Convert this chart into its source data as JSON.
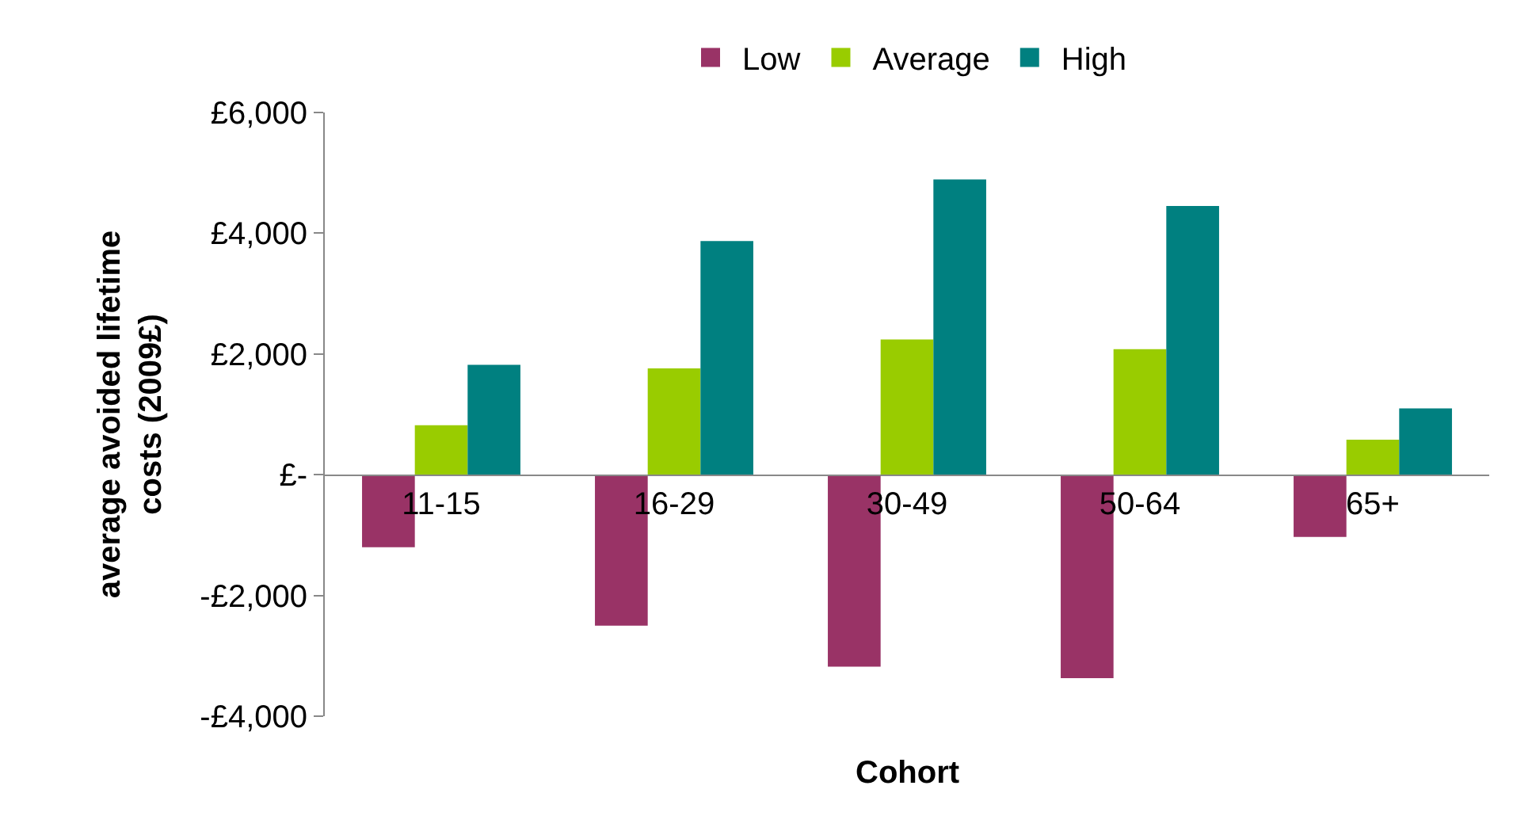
{
  "chart_data": {
    "type": "bar",
    "xlabel": "Cohort",
    "ylabel": "average avoided lifetime costs (2009£)",
    "categories": [
      "11-15",
      "16-29",
      "30-49",
      "50-64",
      "65+"
    ],
    "series": [
      {
        "name": "Low",
        "color": "#993366",
        "values": [
          -1200,
          -2500,
          -3180,
          -3370,
          -1030
        ]
      },
      {
        "name": "Average",
        "color": "#99cc00",
        "values": [
          820,
          1760,
          2240,
          2080,
          580
        ]
      },
      {
        "name": "High",
        "color": "#008080",
        "values": [
          1820,
          3870,
          4890,
          4450,
          1100
        ]
      }
    ],
    "ylim": [
      -4000,
      6000
    ],
    "yticks": [
      {
        "value": 6000,
        "label": "£6,000"
      },
      {
        "value": 4000,
        "label": "£4,000"
      },
      {
        "value": 2000,
        "label": "£2,000"
      },
      {
        "value": 0,
        "label": "£-"
      },
      {
        "value": -2000,
        "label": "-£2,000"
      },
      {
        "value": -4000,
        "label": "-£4,000"
      }
    ],
    "legend": "top"
  }
}
